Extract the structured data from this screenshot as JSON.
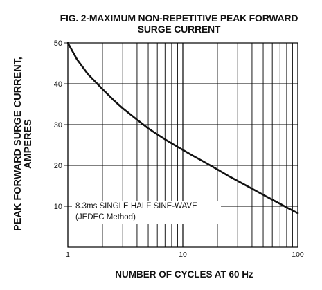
{
  "chart_data": {
    "type": "line",
    "title": "FIG. 2-MAXIMUM NON-REPETITIVE PEAK FORWARD",
    "subtitle": "SURGE CURRENT",
    "xlabel": "NUMBER OF CYCLES AT 60 Hz",
    "ylabel_line1": "PEAK  FORWARD SURGE CURRENT,",
    "ylabel_line2": "AMPERES",
    "x_scale": "log",
    "xlim": [
      1,
      100
    ],
    "ylim": [
      0,
      50
    ],
    "x_ticks": [
      "1",
      "10",
      "100"
    ],
    "y_ticks": [
      "10",
      "20",
      "30",
      "40",
      "50"
    ],
    "grid": true,
    "annotation_line1": "8.3ms SINGLE HALF SINE-WAVE",
    "annotation_line2": "(JEDEC Method)",
    "series": [
      {
        "x": [
          1,
          1.2,
          1.5,
          2,
          2.5,
          3,
          4,
          5,
          6,
          7,
          8,
          10,
          12,
          15,
          20,
          25,
          30,
          40,
          50,
          60,
          70,
          80,
          100
        ],
        "y": [
          50,
          46,
          42.3,
          38.7,
          36.0,
          34.0,
          31.2,
          29.1,
          27.6,
          26.4,
          25.4,
          23.8,
          22.5,
          21.0,
          19.0,
          17.4,
          16.2,
          14.3,
          12.8,
          11.6,
          10.6,
          9.7,
          8.3
        ]
      }
    ],
    "line_color": "#111111",
    "grid_color": "#000000"
  }
}
